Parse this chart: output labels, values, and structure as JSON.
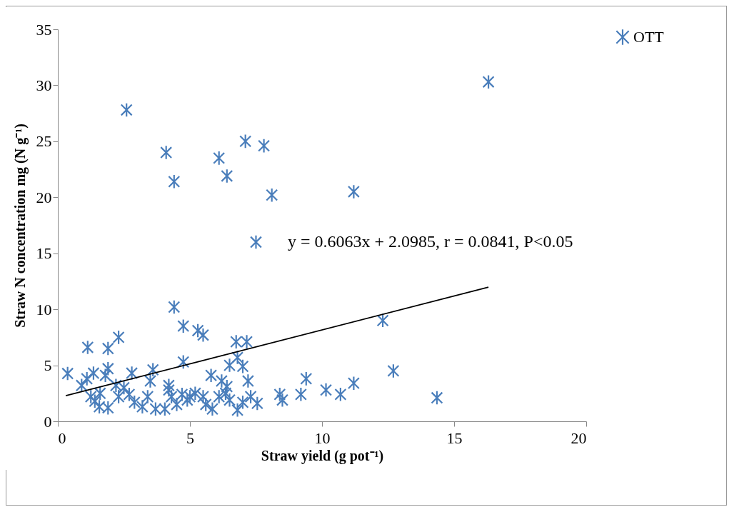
{
  "chart_data": {
    "type": "scatter",
    "xlabel": "Straw yield (g pot⁻¹)",
    "ylabel": "Straw N concentration mg (N g⁻¹)",
    "xlim": [
      0,
      20
    ],
    "xticks": [
      0,
      5,
      10,
      15,
      20
    ],
    "ylim": [
      0,
      35
    ],
    "yticks": [
      0,
      5,
      10,
      15,
      20,
      25,
      30,
      35
    ],
    "grid": false,
    "legend": "right",
    "annotations": [
      "y = 0.6063x + 2.0985,  r = 0.0841, P<0.05"
    ],
    "series": [
      {
        "name": "OTT",
        "color": "#4a7ebb",
        "marker": "cross",
        "x": [
          2.6,
          4.1,
          4.4,
          6.1,
          6.4,
          7.1,
          7.8,
          8.1,
          11.2,
          16.3,
          7.5,
          4.4,
          4.75,
          4.75,
          5.3,
          5.5,
          2.3,
          1.13,
          1.9,
          6.75,
          7.15,
          6.8,
          12.3,
          12.7,
          0.37,
          1.9,
          1.1,
          1.35,
          3.6,
          2.8,
          3.5,
          1.25,
          1.57,
          1.9,
          1.4,
          2.2,
          2.5,
          2.3,
          2.7,
          2.9,
          3.2,
          3.4,
          3.7,
          4.05,
          4.2,
          4.2,
          4.3,
          4.5,
          4.7,
          4.9,
          1.8,
          0.9,
          1.6,
          6.5,
          7.0,
          5.8,
          6.2,
          7.2,
          6.4,
          5.2,
          5.5,
          6.1,
          6.35,
          6.5,
          5.6,
          5.85,
          6.8,
          7.0,
          7.3,
          7.55,
          8.4,
          8.5,
          9.2,
          9.4,
          10.15,
          5.0,
          10.7,
          11.2,
          14.35
        ],
        "values": [
          27.8,
          24.0,
          21.4,
          23.5,
          21.9,
          25.0,
          24.6,
          20.2,
          20.5,
          30.3,
          16.0,
          10.2,
          8.5,
          5.3,
          8.1,
          7.7,
          7.5,
          6.6,
          6.5,
          7.1,
          7.1,
          5.7,
          9.0,
          4.5,
          4.27,
          4.7,
          3.8,
          4.3,
          4.6,
          4.3,
          3.6,
          2.2,
          1.3,
          1.2,
          1.8,
          3.2,
          3.0,
          2.2,
          2.4,
          1.7,
          1.3,
          2.2,
          1.1,
          1.1,
          3.2,
          2.8,
          2.2,
          1.5,
          2.4,
          1.9,
          4.1,
          3.2,
          2.5,
          5.0,
          4.9,
          4.1,
          3.6,
          3.6,
          3.1,
          2.5,
          2.2,
          2.2,
          2.5,
          1.9,
          1.5,
          1.1,
          1.0,
          1.7,
          2.2,
          1.6,
          2.4,
          1.9,
          2.4,
          3.8,
          2.8,
          2.2,
          2.4,
          3.4,
          2.1
        ]
      },
      {
        "type": "line",
        "color": "#000000",
        "x": [
          0.3,
          16.3
        ],
        "values": [
          2.28,
          11.98
        ]
      }
    ]
  }
}
